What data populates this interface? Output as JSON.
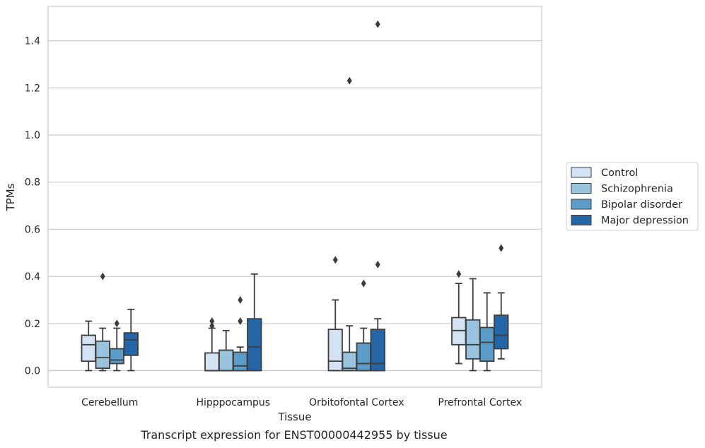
{
  "chart_data": {
    "type": "box",
    "xlabel": "Tissue",
    "ylabel": "TPMs",
    "caption": "Transcript expression for ENST00000442955 by tissue",
    "ylim": [
      -0.07,
      1.55
    ],
    "yticks": [
      "0.0",
      "0.2",
      "0.4",
      "0.6",
      "0.8",
      "1.0",
      "1.2",
      "1.4"
    ],
    "grid": "horizontal",
    "legend_position": "right",
    "categories": [
      "Cerebellum",
      "Hipppocampus",
      "Orbitofontal Cortex",
      "Prefrontal Cortex"
    ],
    "series": [
      {
        "name": "Control",
        "color": "#d4e3f3",
        "boxes": [
          {
            "whislo": 0.0,
            "q1": 0.04,
            "med": 0.11,
            "q3": 0.15,
            "whishi": 0.21,
            "fliers": []
          },
          {
            "whislo": 0.0,
            "q1": 0.0,
            "med": 0.0,
            "q3": 0.075,
            "whishi": 0.18,
            "fliers": [
              0.19,
              0.21
            ]
          },
          {
            "whislo": 0.0,
            "q1": 0.0,
            "med": 0.04,
            "q3": 0.175,
            "whishi": 0.3,
            "fliers": [
              0.47
            ]
          },
          {
            "whislo": 0.03,
            "q1": 0.11,
            "med": 0.17,
            "q3": 0.225,
            "whishi": 0.37,
            "fliers": [
              0.41
            ]
          }
        ]
      },
      {
        "name": "Schizophrenia",
        "color": "#9ac3dd",
        "boxes": [
          {
            "whislo": 0.0,
            "q1": 0.01,
            "med": 0.055,
            "q3": 0.125,
            "whishi": 0.18,
            "fliers": [
              0.4
            ]
          },
          {
            "whislo": 0.0,
            "q1": 0.0,
            "med": 0.0,
            "q3": 0.087,
            "whishi": 0.17,
            "fliers": []
          },
          {
            "whislo": 0.0,
            "q1": 0.0,
            "med": 0.01,
            "q3": 0.078,
            "whishi": 0.19,
            "fliers": [
              1.23
            ]
          },
          {
            "whislo": 0.0,
            "q1": 0.05,
            "med": 0.11,
            "q3": 0.215,
            "whishi": 0.39,
            "fliers": []
          }
        ]
      },
      {
        "name": "Bipolar disorder",
        "color": "#5b9cc9",
        "boxes": [
          {
            "whislo": 0.0,
            "q1": 0.03,
            "med": 0.045,
            "q3": 0.093,
            "whishi": 0.18,
            "fliers": [
              0.2
            ]
          },
          {
            "whislo": 0.0,
            "q1": 0.0,
            "med": 0.02,
            "q3": 0.078,
            "whishi": 0.1,
            "fliers": [
              0.21,
              0.3
            ]
          },
          {
            "whislo": 0.0,
            "q1": 0.0,
            "med": 0.03,
            "q3": 0.117,
            "whishi": 0.18,
            "fliers": [
              0.37
            ]
          },
          {
            "whislo": 0.0,
            "q1": 0.04,
            "med": 0.12,
            "q3": 0.183,
            "whishi": 0.33,
            "fliers": []
          }
        ]
      },
      {
        "name": "Major depression",
        "color": "#2566a9",
        "boxes": [
          {
            "whislo": 0.0,
            "q1": 0.065,
            "med": 0.13,
            "q3": 0.16,
            "whishi": 0.26,
            "fliers": []
          },
          {
            "whislo": 0.0,
            "q1": 0.0,
            "med": 0.1,
            "q3": 0.22,
            "whishi": 0.41,
            "fliers": []
          },
          {
            "whislo": 0.0,
            "q1": 0.0,
            "med": 0.03,
            "q3": 0.175,
            "whishi": 0.22,
            "fliers": [
              0.45,
              1.47
            ]
          },
          {
            "whislo": 0.05,
            "q1": 0.093,
            "med": 0.15,
            "q3": 0.235,
            "whishi": 0.33,
            "fliers": [
              0.52
            ]
          }
        ]
      }
    ]
  }
}
